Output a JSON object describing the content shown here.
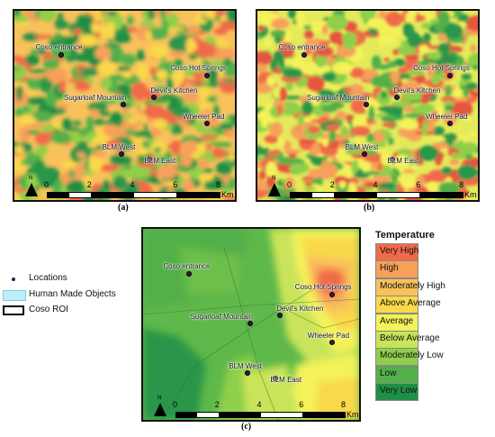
{
  "panels": [
    {
      "caption": "(a)",
      "km": "Km",
      "locations": [
        "Coso entrance",
        "Coso Hot Springs",
        "Devil's Kitchen",
        "Sugarloaf Mountain",
        "Wheeler Pad",
        "BLM West",
        "BLM East"
      ],
      "ticks": [
        "0",
        "2",
        "4",
        "6",
        "8"
      ]
    },
    {
      "caption": "(b)",
      "km": "Km",
      "locations": [
        "Coso entrance",
        "Coso Hot Springs",
        "Devil's Kitchen",
        "Sugarloaf Mountain",
        "Wheeler Pad",
        "BLM West",
        "BLM East"
      ],
      "ticks": [
        "0",
        "2",
        "4",
        "6",
        "8"
      ]
    },
    {
      "caption": "(c)",
      "km": "Km",
      "locations": [
        "Coso entrance",
        "Coso Hot Springs",
        "Devil's Kitchen",
        "Sugarloaf Mountain",
        "Wheeler Pad",
        "BLM West",
        "BLM East"
      ],
      "ticks": [
        "0",
        "2",
        "4",
        "6",
        "8"
      ]
    }
  ],
  "north_label": "N",
  "left_legend": {
    "locations": "Locations",
    "human_made": "Human Made Objects",
    "roi": "Coso ROI",
    "colors": {
      "locations": "#3b1450",
      "human_made": "#bdeefd",
      "roi": "#000000"
    }
  },
  "temperature_legend": {
    "title": "Temperature",
    "classes": [
      {
        "label": "Very High",
        "color": "#f06a4a"
      },
      {
        "label": "High",
        "color": "#f7a05a"
      },
      {
        "label": "Moderately High",
        "color": "#f9c15a"
      },
      {
        "label": "Above Average",
        "color": "#f9d84a"
      },
      {
        "label": "Average",
        "color": "#f4f25a"
      },
      {
        "label": "Below Average",
        "color": "#c9e45a"
      },
      {
        "label": "Moderately Low",
        "color": "#8fcf4a"
      },
      {
        "label": "Low",
        "color": "#52b04a"
      },
      {
        "label": "Very Low",
        "color": "#1f8f45"
      }
    ]
  }
}
